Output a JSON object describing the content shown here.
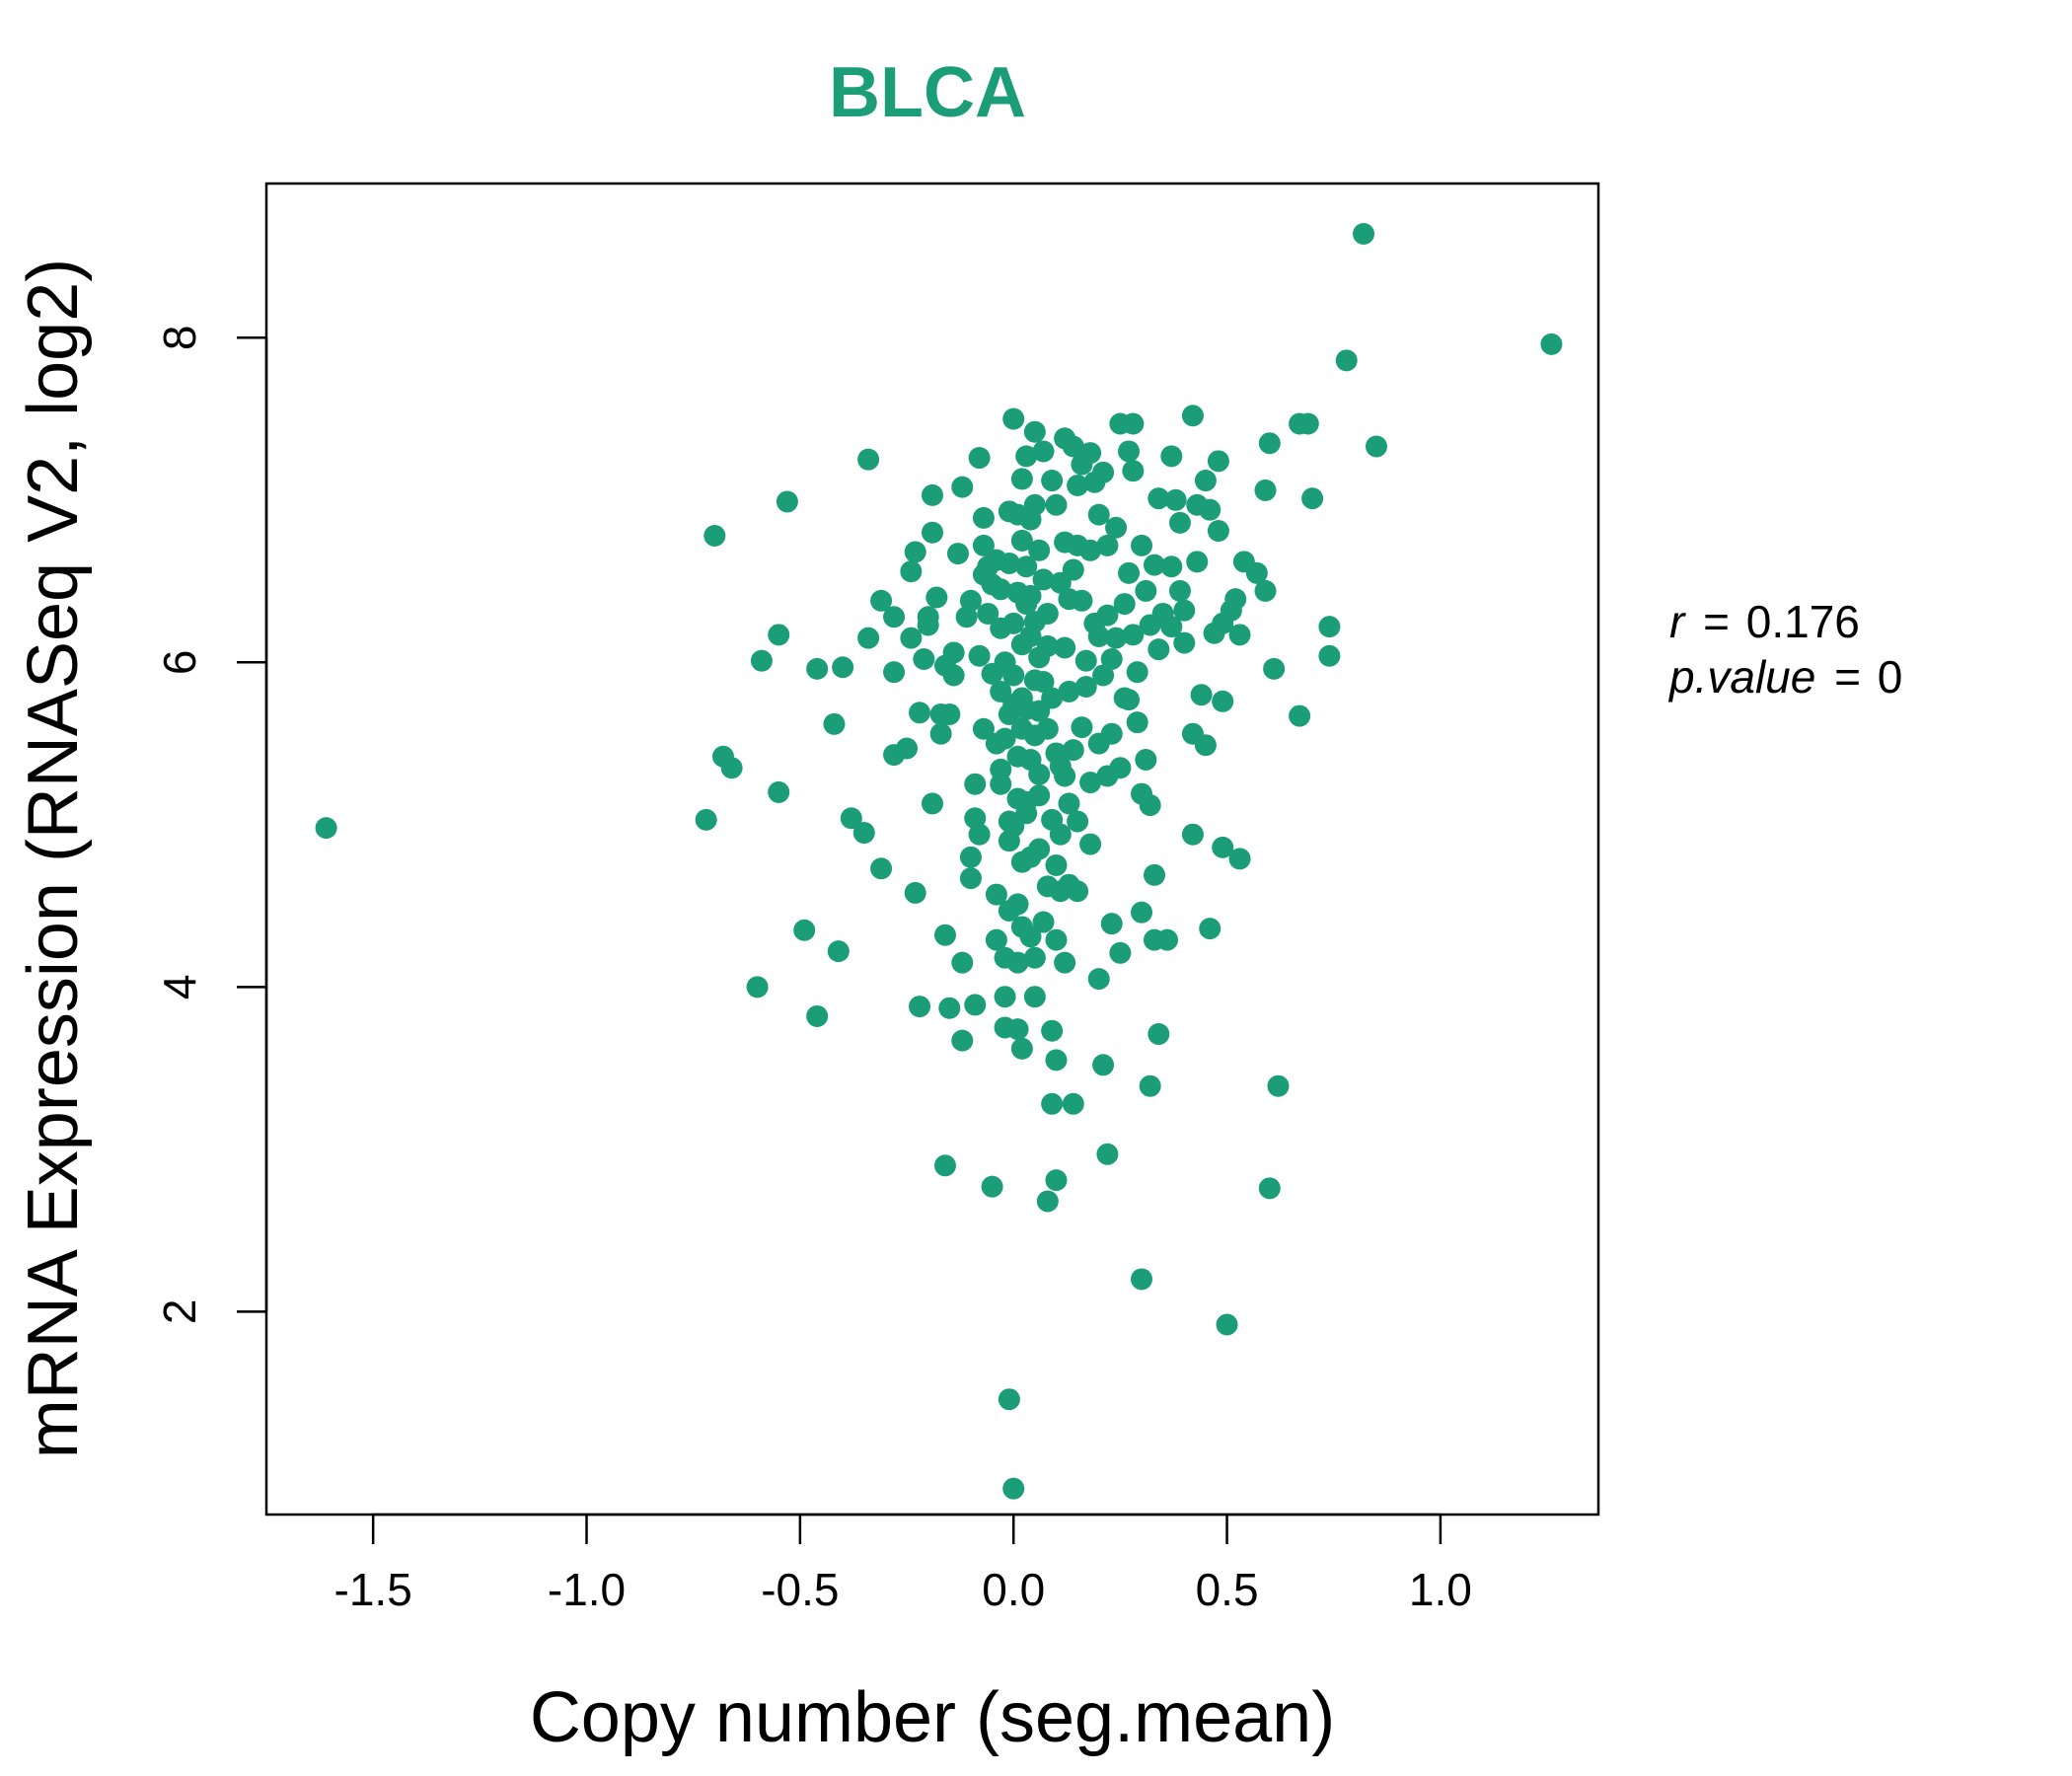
{
  "chart_data": {
    "type": "scatter",
    "title": "BLCA",
    "xlabel": "Copy number (seg.mean)",
    "ylabel": "mRNA Expression (RNASeq V2, log2)",
    "xlim": [
      -1.75,
      1.37
    ],
    "ylim": [
      0.75,
      8.95
    ],
    "xticks": [
      -1.5,
      -1.0,
      -0.5,
      0.0,
      0.5,
      1.0
    ],
    "xtick_labels": [
      "-1.5",
      "-1.0",
      "-0.5",
      "0.0",
      "0.5",
      "1.0"
    ],
    "yticks": [
      2,
      4,
      6,
      8
    ],
    "ytick_labels": [
      "2",
      "4",
      "6",
      "8"
    ],
    "grid": false,
    "color": "#1b9e77",
    "annotation": {
      "r_label": "r",
      "r_value": "0.176",
      "p_label": "p.value",
      "p_value": "0"
    },
    "points": [
      [
        -1.61,
        4.98
      ],
      [
        -0.72,
        5.03
      ],
      [
        -0.7,
        6.78
      ],
      [
        -0.68,
        5.42
      ],
      [
        -0.66,
        5.35
      ],
      [
        -0.6,
        4.0
      ],
      [
        -0.59,
        6.01
      ],
      [
        -0.55,
        6.17
      ],
      [
        -0.55,
        5.2
      ],
      [
        -0.53,
        6.99
      ],
      [
        -0.49,
        4.35
      ],
      [
        -0.46,
        5.96
      ],
      [
        -0.46,
        3.82
      ],
      [
        -0.42,
        5.62
      ],
      [
        -0.41,
        4.22
      ],
      [
        -0.4,
        5.97
      ],
      [
        -0.38,
        5.04
      ],
      [
        -0.35,
        4.95
      ],
      [
        -0.34,
        7.25
      ],
      [
        -0.34,
        6.15
      ],
      [
        -0.31,
        6.38
      ],
      [
        -0.31,
        4.73
      ],
      [
        -0.28,
        5.94
      ],
      [
        -0.28,
        6.28
      ],
      [
        -0.28,
        5.43
      ],
      [
        -0.25,
        5.47
      ],
      [
        -0.24,
        6.56
      ],
      [
        -0.24,
        6.15
      ],
      [
        -0.23,
        4.58
      ],
      [
        -0.23,
        6.68
      ],
      [
        -0.22,
        3.88
      ],
      [
        -0.22,
        5.69
      ],
      [
        -0.21,
        6.02
      ],
      [
        -0.2,
        6.23
      ],
      [
        -0.2,
        6.28
      ],
      [
        -0.19,
        5.13
      ],
      [
        -0.19,
        7.03
      ],
      [
        -0.19,
        6.8
      ],
      [
        -0.18,
        6.4
      ],
      [
        -0.17,
        5.68
      ],
      [
        -0.17,
        5.56
      ],
      [
        -0.16,
        4.32
      ],
      [
        -0.16,
        2.9
      ],
      [
        -0.16,
        5.98
      ],
      [
        -0.15,
        3.87
      ],
      [
        -0.15,
        5.68
      ],
      [
        -0.14,
        5.92
      ],
      [
        -0.14,
        6.06
      ],
      [
        -0.13,
        6.67
      ],
      [
        -0.12,
        4.15
      ],
      [
        -0.12,
        3.67
      ],
      [
        -0.12,
        7.08
      ],
      [
        -0.11,
        6.28
      ],
      [
        -0.1,
        6.38
      ],
      [
        -0.1,
        4.8
      ],
      [
        -0.1,
        4.67
      ],
      [
        -0.09,
        3.89
      ],
      [
        -0.09,
        5.04
      ],
      [
        -0.09,
        5.25
      ],
      [
        -0.08,
        4.94
      ],
      [
        -0.08,
        7.26
      ],
      [
        -0.08,
        6.04
      ],
      [
        -0.07,
        6.54
      ],
      [
        -0.07,
        6.89
      ],
      [
        -0.07,
        6.72
      ],
      [
        -0.07,
        5.59
      ],
      [
        -0.06,
        6.59
      ],
      [
        -0.06,
        6.3
      ],
      [
        -0.05,
        2.77
      ],
      [
        -0.05,
        5.93
      ],
      [
        -0.05,
        6.48
      ],
      [
        -0.04,
        5.5
      ],
      [
        -0.04,
        6.63
      ],
      [
        -0.04,
        4.57
      ],
      [
        -0.04,
        4.29
      ],
      [
        -0.03,
        5.25
      ],
      [
        -0.03,
        6.21
      ],
      [
        -0.03,
        5.34
      ],
      [
        -0.03,
        6.45
      ],
      [
        -0.03,
        5.82
      ],
      [
        -0.02,
        3.94
      ],
      [
        -0.02,
        3.75
      ],
      [
        -0.02,
        4.18
      ],
      [
        -0.02,
        5.53
      ],
      [
        -0.02,
        6.0
      ],
      [
        -0.01,
        1.46
      ],
      [
        -0.01,
        4.47
      ],
      [
        -0.01,
        5.68
      ],
      [
        -0.01,
        6.93
      ],
      [
        -0.01,
        6.61
      ],
      [
        -0.01,
        5.02
      ],
      [
        -0.01,
        4.9
      ],
      [
        0.0,
        0.91
      ],
      [
        0.0,
        7.5
      ],
      [
        0.0,
        5.74
      ],
      [
        0.0,
        6.24
      ],
      [
        0.0,
        4.99
      ],
      [
        0.0,
        5.92
      ],
      [
        0.01,
        6.43
      ],
      [
        0.01,
        3.74
      ],
      [
        0.01,
        4.15
      ],
      [
        0.01,
        5.42
      ],
      [
        0.01,
        5.16
      ],
      [
        0.01,
        4.51
      ],
      [
        0.01,
        6.91
      ],
      [
        0.02,
        6.75
      ],
      [
        0.02,
        6.11
      ],
      [
        0.02,
        5.78
      ],
      [
        0.02,
        3.62
      ],
      [
        0.02,
        4.77
      ],
      [
        0.02,
        5.59
      ],
      [
        0.02,
        7.13
      ],
      [
        0.02,
        4.37
      ],
      [
        0.03,
        6.36
      ],
      [
        0.03,
        5.14
      ],
      [
        0.03,
        6.59
      ],
      [
        0.03,
        7.27
      ],
      [
        0.03,
        5.71
      ],
      [
        0.03,
        5.07
      ],
      [
        0.04,
        6.16
      ],
      [
        0.04,
        4.31
      ],
      [
        0.04,
        4.8
      ],
      [
        0.04,
        6.88
      ],
      [
        0.04,
        5.4
      ],
      [
        0.04,
        6.41
      ],
      [
        0.05,
        5.89
      ],
      [
        0.05,
        3.94
      ],
      [
        0.05,
        5.55
      ],
      [
        0.05,
        4.18
      ],
      [
        0.05,
        6.25
      ],
      [
        0.05,
        7.42
      ],
      [
        0.05,
        6.97
      ],
      [
        0.06,
        5.7
      ],
      [
        0.06,
        4.85
      ],
      [
        0.06,
        6.69
      ],
      [
        0.06,
        5.18
      ],
      [
        0.06,
        6.03
      ],
      [
        0.06,
        5.31
      ],
      [
        0.07,
        7.3
      ],
      [
        0.07,
        4.4
      ],
      [
        0.07,
        6.51
      ],
      [
        0.07,
        5.88
      ],
      [
        0.08,
        5.59
      ],
      [
        0.08,
        6.3
      ],
      [
        0.08,
        4.62
      ],
      [
        0.08,
        2.68
      ],
      [
        0.08,
        6.1
      ],
      [
        0.09,
        5.03
      ],
      [
        0.09,
        3.28
      ],
      [
        0.09,
        7.12
      ],
      [
        0.09,
        3.73
      ],
      [
        0.09,
        5.78
      ],
      [
        0.1,
        2.81
      ],
      [
        0.1,
        4.29
      ],
      [
        0.1,
        6.97
      ],
      [
        0.1,
        3.55
      ],
      [
        0.1,
        5.44
      ],
      [
        0.1,
        4.75
      ],
      [
        0.11,
        4.59
      ],
      [
        0.11,
        5.36
      ],
      [
        0.11,
        6.49
      ],
      [
        0.11,
        4.94
      ],
      [
        0.12,
        6.74
      ],
      [
        0.12,
        4.15
      ],
      [
        0.12,
        5.3
      ],
      [
        0.12,
        7.38
      ],
      [
        0.12,
        6.09
      ],
      [
        0.13,
        5.13
      ],
      [
        0.13,
        4.63
      ],
      [
        0.13,
        6.39
      ],
      [
        0.13,
        5.82
      ],
      [
        0.14,
        3.28
      ],
      [
        0.14,
        7.33
      ],
      [
        0.14,
        6.57
      ],
      [
        0.14,
        5.46
      ],
      [
        0.15,
        5.02
      ],
      [
        0.15,
        7.09
      ],
      [
        0.15,
        4.59
      ],
      [
        0.15,
        6.72
      ],
      [
        0.16,
        5.6
      ],
      [
        0.16,
        6.38
      ],
      [
        0.16,
        7.22
      ],
      [
        0.17,
        6.01
      ],
      [
        0.17,
        5.85
      ],
      [
        0.18,
        4.88
      ],
      [
        0.18,
        7.29
      ],
      [
        0.18,
        6.69
      ],
      [
        0.18,
        5.26
      ],
      [
        0.19,
        6.24
      ],
      [
        0.19,
        7.11
      ],
      [
        0.2,
        4.05
      ],
      [
        0.2,
        5.5
      ],
      [
        0.2,
        6.91
      ],
      [
        0.2,
        6.16
      ],
      [
        0.21,
        7.17
      ],
      [
        0.21,
        5.92
      ],
      [
        0.21,
        3.52
      ],
      [
        0.22,
        6.29
      ],
      [
        0.22,
        5.3
      ],
      [
        0.22,
        2.97
      ],
      [
        0.22,
        6.72
      ],
      [
        0.23,
        4.39
      ],
      [
        0.23,
        5.56
      ],
      [
        0.23,
        6.02
      ],
      [
        0.24,
        6.83
      ],
      [
        0.24,
        6.15
      ],
      [
        0.25,
        4.21
      ],
      [
        0.25,
        5.35
      ],
      [
        0.25,
        7.47
      ],
      [
        0.26,
        5.78
      ],
      [
        0.26,
        6.36
      ],
      [
        0.27,
        7.3
      ],
      [
        0.27,
        6.55
      ],
      [
        0.27,
        5.77
      ],
      [
        0.28,
        7.47
      ],
      [
        0.28,
        7.18
      ],
      [
        0.28,
        6.17
      ],
      [
        0.29,
        5.63
      ],
      [
        0.29,
        5.94
      ],
      [
        0.3,
        2.2
      ],
      [
        0.3,
        4.46
      ],
      [
        0.3,
        5.19
      ],
      [
        0.3,
        6.72
      ],
      [
        0.31,
        5.4
      ],
      [
        0.31,
        6.44
      ],
      [
        0.32,
        3.39
      ],
      [
        0.32,
        5.12
      ],
      [
        0.32,
        6.23
      ],
      [
        0.33,
        4.29
      ],
      [
        0.33,
        4.69
      ],
      [
        0.33,
        6.6
      ],
      [
        0.34,
        3.71
      ],
      [
        0.34,
        6.08
      ],
      [
        0.34,
        7.01
      ],
      [
        0.35,
        6.3
      ],
      [
        0.36,
        4.29
      ],
      [
        0.37,
        7.27
      ],
      [
        0.37,
        6.59
      ],
      [
        0.37,
        6.22
      ],
      [
        0.38,
        7.0
      ],
      [
        0.39,
        6.86
      ],
      [
        0.39,
        6.44
      ],
      [
        0.4,
        6.32
      ],
      [
        0.4,
        6.12
      ],
      [
        0.42,
        7.52
      ],
      [
        0.42,
        4.94
      ],
      [
        0.42,
        5.56
      ],
      [
        0.43,
        6.62
      ],
      [
        0.43,
        6.97
      ],
      [
        0.44,
        5.8
      ],
      [
        0.45,
        5.49
      ],
      [
        0.45,
        7.12
      ],
      [
        0.46,
        4.36
      ],
      [
        0.46,
        6.94
      ],
      [
        0.47,
        6.18
      ],
      [
        0.48,
        7.24
      ],
      [
        0.48,
        6.81
      ],
      [
        0.49,
        6.24
      ],
      [
        0.49,
        4.86
      ],
      [
        0.49,
        5.76
      ],
      [
        0.5,
        1.92
      ],
      [
        0.51,
        6.32
      ],
      [
        0.52,
        6.39
      ],
      [
        0.53,
        6.17
      ],
      [
        0.53,
        4.79
      ],
      [
        0.54,
        6.62
      ],
      [
        0.57,
        6.55
      ],
      [
        0.59,
        6.44
      ],
      [
        0.59,
        7.06
      ],
      [
        0.6,
        2.76
      ],
      [
        0.6,
        7.35
      ],
      [
        0.61,
        5.96
      ],
      [
        0.62,
        3.39
      ],
      [
        0.67,
        5.67
      ],
      [
        0.67,
        7.47
      ],
      [
        0.69,
        7.47
      ],
      [
        0.7,
        7.01
      ],
      [
        0.74,
        6.04
      ],
      [
        0.74,
        6.22
      ],
      [
        0.78,
        7.86
      ],
      [
        0.82,
        8.64
      ],
      [
        0.85,
        7.33
      ],
      [
        1.26,
        7.96
      ]
    ]
  }
}
